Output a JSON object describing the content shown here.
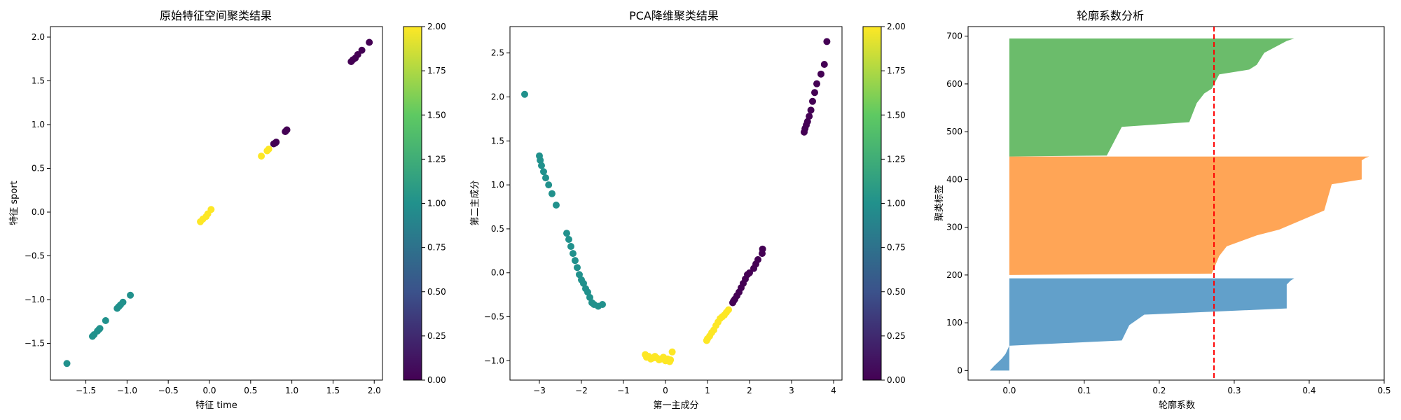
{
  "chart_data": [
    {
      "type": "scatter",
      "title": "原始特征空间聚类结果",
      "xlabel": "特征 time",
      "ylabel": "特征 sport",
      "xlim": [
        -1.93,
        2.1
      ],
      "ylim": [
        -1.92,
        2.12
      ],
      "xticks": [
        -1.5,
        -1.0,
        -0.5,
        0.0,
        0.5,
        1.0,
        1.5,
        2.0
      ],
      "xtick_labels": [
        "−1.5",
        "−1.0",
        "−0.5",
        "0.0",
        "0.5",
        "1.0",
        "1.5",
        "2.0"
      ],
      "yticks": [
        -1.5,
        -1.0,
        -0.5,
        0.0,
        0.5,
        1.0,
        1.5,
        2.0
      ],
      "ytick_labels": [
        "−1.5",
        "−1.0",
        "−0.5",
        "0.0",
        "0.5",
        "1.0",
        "1.5",
        "2.0"
      ],
      "colormap": "viridis",
      "series": [
        {
          "cluster": 0,
          "color": "#440154",
          "x": [
            0.78,
            0.8,
            0.81,
            0.92,
            0.93,
            0.94,
            1.72,
            1.74,
            1.77,
            1.8,
            1.85,
            1.94
          ],
          "y": [
            0.78,
            0.79,
            0.8,
            0.92,
            0.93,
            0.94,
            1.72,
            1.74,
            1.76,
            1.8,
            1.85,
            1.94
          ]
        },
        {
          "cluster": 1,
          "color": "#21918c",
          "x": [
            -1.73,
            -1.42,
            -1.4,
            -1.36,
            -1.34,
            -1.33,
            -1.26,
            -1.12,
            -1.1,
            -1.08,
            -1.05,
            -0.96
          ],
          "y": [
            -1.73,
            -1.42,
            -1.4,
            -1.36,
            -1.34,
            -1.33,
            -1.24,
            -1.1,
            -1.08,
            -1.06,
            -1.03,
            -0.95
          ]
        },
        {
          "cluster": 2,
          "color": "#fde725",
          "x": [
            -0.11,
            -0.08,
            -0.04,
            -0.02,
            0.02,
            0.63,
            0.7,
            0.72
          ],
          "y": [
            -0.11,
            -0.08,
            -0.05,
            -0.02,
            0.03,
            0.64,
            0.7,
            0.72
          ]
        }
      ],
      "colorbar": {
        "vmin": 0,
        "vmax": 2,
        "ticks": [
          0,
          0.25,
          0.5,
          0.75,
          1.0,
          1.25,
          1.5,
          1.75,
          2.0
        ],
        "tick_labels": [
          "0.00",
          "0.25",
          "0.50",
          "0.75",
          "1.00",
          "1.25",
          "1.50",
          "1.75",
          "2.00"
        ]
      }
    },
    {
      "type": "scatter",
      "title": "PCA降维聚类结果",
      "xlabel": "第一主成分",
      "ylabel": "第二主成分",
      "xlim": [
        -3.7,
        4.2
      ],
      "ylim": [
        -1.22,
        2.8
      ],
      "xticks": [
        -3,
        -2,
        -1,
        0,
        1,
        2,
        3,
        4
      ],
      "xtick_labels": [
        "−3",
        "−2",
        "−1",
        "0",
        "1",
        "2",
        "3",
        "4"
      ],
      "yticks": [
        -1.0,
        -0.5,
        0.0,
        0.5,
        1.0,
        1.5,
        2.0,
        2.5
      ],
      "ytick_labels": [
        "−1.0",
        "−0.5",
        "0.0",
        "0.5",
        "1.0",
        "1.5",
        "2.0",
        "2.5"
      ],
      "colormap": "viridis",
      "series": [
        {
          "cluster": 0,
          "color": "#440154",
          "x": [
            1.6,
            1.62,
            1.65,
            1.7,
            1.75,
            1.8,
            1.85,
            1.9,
            1.95,
            2.0,
            2.1,
            2.15,
            2.2,
            2.3,
            2.31,
            3.3,
            3.32,
            3.35,
            3.38,
            3.42,
            3.46,
            3.5,
            3.55,
            3.6,
            3.7,
            3.78,
            3.84
          ],
          "y": [
            -0.34,
            -0.32,
            -0.3,
            -0.26,
            -0.22,
            -0.17,
            -0.12,
            -0.07,
            -0.02,
            0.0,
            0.05,
            0.1,
            0.15,
            0.22,
            0.27,
            1.6,
            1.64,
            1.68,
            1.72,
            1.78,
            1.85,
            1.95,
            2.05,
            2.15,
            2.26,
            2.37,
            2.63
          ]
        },
        {
          "cluster": 1,
          "color": "#21918c",
          "x": [
            -3.35,
            -3.0,
            -2.98,
            -2.95,
            -2.9,
            -2.85,
            -2.78,
            -2.7,
            -2.6,
            -2.35,
            -2.3,
            -2.25,
            -2.2,
            -2.15,
            -2.1,
            -2.05,
            -2.0,
            -1.95,
            -1.9,
            -1.85,
            -1.8,
            -1.75,
            -1.7,
            -1.6,
            -1.5
          ],
          "y": [
            2.03,
            1.33,
            1.28,
            1.22,
            1.15,
            1.08,
            1.0,
            0.9,
            0.77,
            0.45,
            0.38,
            0.3,
            0.22,
            0.14,
            0.06,
            -0.02,
            -0.08,
            -0.12,
            -0.18,
            -0.22,
            -0.28,
            -0.34,
            -0.36,
            -0.38,
            -0.36
          ]
        },
        {
          "cluster": 2,
          "color": "#fde725",
          "x": [
            -0.48,
            -0.45,
            -0.4,
            -0.35,
            -0.3,
            -0.25,
            -0.2,
            -0.15,
            -0.1,
            -0.05,
            0.0,
            0.05,
            0.1,
            0.12,
            0.16,
            0.98,
            1.0,
            1.05,
            1.1,
            1.15,
            1.2,
            1.25,
            1.3,
            1.35,
            1.4,
            1.45,
            1.5
          ],
          "y": [
            -0.93,
            -0.96,
            -0.95,
            -0.98,
            -0.97,
            -0.95,
            -0.97,
            -0.99,
            -0.98,
            -0.96,
            -1.0,
            -0.98,
            -1.01,
            -0.99,
            -0.9,
            -0.77,
            -0.75,
            -0.72,
            -0.68,
            -0.65,
            -0.6,
            -0.56,
            -0.52,
            -0.5,
            -0.48,
            -0.45,
            -0.42
          ]
        }
      ],
      "colorbar": {
        "vmin": 0,
        "vmax": 2,
        "ticks": [
          0,
          0.25,
          0.5,
          0.75,
          1.0,
          1.25,
          1.5,
          1.75,
          2.0
        ],
        "tick_labels": [
          "0.00",
          "0.25",
          "0.50",
          "0.75",
          "1.00",
          "1.25",
          "1.50",
          "1.75",
          "2.00"
        ]
      }
    },
    {
      "type": "area",
      "title": "轮廓系数分析",
      "xlabel": "轮廓系数",
      "ylabel": "聚类标签",
      "xlim": [
        -0.055,
        0.5
      ],
      "ylim": [
        -20,
        720
      ],
      "xticks": [
        0.0,
        0.1,
        0.2,
        0.3,
        0.4,
        0.5
      ],
      "xtick_labels": [
        "0.0",
        "0.1",
        "0.2",
        "0.3",
        "0.4",
        "0.5"
      ],
      "yticks": [
        0,
        100,
        200,
        300,
        400,
        500,
        600,
        700
      ],
      "ytick_labels": [
        "0",
        "100",
        "200",
        "300",
        "400",
        "500",
        "600",
        "700"
      ],
      "series": [
        {
          "cluster": 0,
          "color": "#1f77b4",
          "alpha": 0.7,
          "outline": [
            [
              -0.026,
              0
            ],
            [
              -0.02,
              10
            ],
            [
              -0.01,
              25
            ],
            [
              -0.005,
              35
            ],
            [
              0.0,
              52
            ],
            [
              0.15,
              63
            ],
            [
              0.16,
              95
            ],
            [
              0.18,
              117
            ],
            [
              0.37,
              130
            ],
            [
              0.37,
              180
            ],
            [
              0.375,
              188
            ],
            [
              0.38,
              193
            ]
          ]
        },
        {
          "cluster": 1,
          "color": "#ff7f0e",
          "alpha": 0.7,
          "outline": [
            [
              0.0,
              200
            ],
            [
              0.27,
              203
            ],
            [
              0.28,
              240
            ],
            [
              0.29,
              260
            ],
            [
              0.33,
              283
            ],
            [
              0.36,
              295
            ],
            [
              0.42,
              335
            ],
            [
              0.43,
              390
            ],
            [
              0.47,
              400
            ],
            [
              0.47,
              440
            ],
            [
              0.475,
              445
            ],
            [
              0.48,
              448
            ]
          ]
        },
        {
          "cluster": 2,
          "color": "#2ca02c",
          "alpha": 0.7,
          "outline": [
            [
              0.0,
              448
            ],
            [
              0.13,
              450
            ],
            [
              0.14,
              480
            ],
            [
              0.15,
              510
            ],
            [
              0.24,
              520
            ],
            [
              0.25,
              560
            ],
            [
              0.26,
              580
            ],
            [
              0.27,
              590
            ],
            [
              0.28,
              620
            ],
            [
              0.32,
              630
            ],
            [
              0.33,
              640
            ],
            [
              0.34,
              665
            ],
            [
              0.37,
              690
            ],
            [
              0.38,
              695
            ]
          ]
        }
      ],
      "reference_line": {
        "x": 0.273,
        "color": "#ff0000",
        "style": "dashed"
      }
    }
  ]
}
